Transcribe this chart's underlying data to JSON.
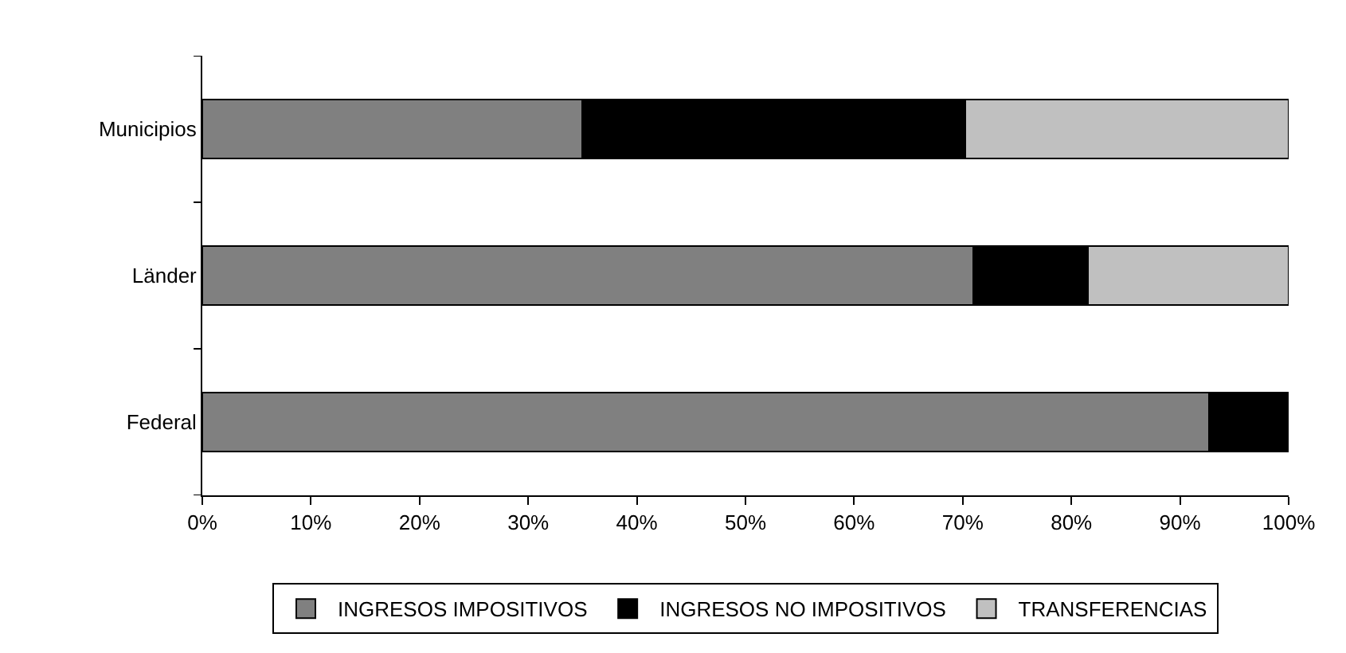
{
  "chart_data": {
    "type": "bar",
    "orientation": "horizontal",
    "stacked": true,
    "categories": [
      "Municipios",
      "Länder",
      "Federal"
    ],
    "series": [
      {
        "name": "INGRESOS IMPOSITIVOS",
        "color": "#808080",
        "values": [
          35,
          71,
          92.7
        ]
      },
      {
        "name": "INGRESOS NO IMPOSITIVOS",
        "color": "#000000",
        "values": [
          35.2,
          10.5,
          7.3
        ]
      },
      {
        "name": "TRANSFERENCIAS",
        "color": "#c0c0c0",
        "values": [
          29.8,
          18.5,
          null
        ]
      }
    ],
    "xlim": [
      0,
      100
    ],
    "xticks": [
      {
        "value": 0,
        "label": "0%"
      },
      {
        "value": 10,
        "label": "10%"
      },
      {
        "value": 20,
        "label": "20%"
      },
      {
        "value": 30,
        "label": "30%"
      },
      {
        "value": 40,
        "label": "40%"
      },
      {
        "value": 50,
        "label": "50%"
      },
      {
        "value": 60,
        "label": "60%"
      },
      {
        "value": 70,
        "label": "70%"
      },
      {
        "value": 80,
        "label": "80%"
      },
      {
        "value": 90,
        "label": "90%"
      },
      {
        "value": 100,
        "label": "100%"
      }
    ],
    "grid": false,
    "legend": "bottom"
  }
}
